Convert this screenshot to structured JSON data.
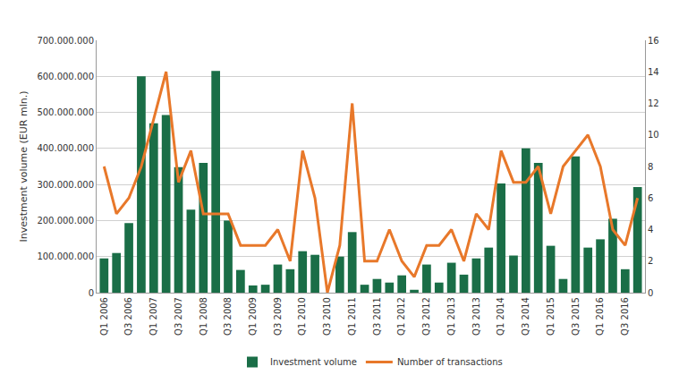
{
  "chart_data": {
    "type": "bar",
    "y_label": "Investment volume (EUR mln.)",
    "categories": [
      "Q1 2006",
      null,
      "Q3 2006",
      null,
      "Q1 2007",
      null,
      "Q3 2007",
      null,
      "Q1 2008",
      null,
      "Q3 2008",
      null,
      "Q1 2009",
      null,
      "Q3 2009",
      null,
      "Q1 2010",
      null,
      "Q3 2010",
      null,
      "Q1 2011",
      null,
      "Q3 2011",
      null,
      "Q1 2012",
      null,
      "Q3 2012",
      null,
      "Q1 2013",
      null,
      "Q3 2013",
      null,
      "Q1 2014",
      null,
      "Q3 2014",
      null,
      "Q1 2015",
      null,
      "Q3 2015",
      null,
      "Q1 2016",
      null,
      "Q3 2016",
      null
    ],
    "series": [
      {
        "name": "Investment volume",
        "type": "bar",
        "color": "#1a6e47",
        "values": [
          95000000,
          110000000,
          193000000,
          600000000,
          470000000,
          493000000,
          348000000,
          230000000,
          360000000,
          615000000,
          200000000,
          63000000,
          20000000,
          22000000,
          78000000,
          65000000,
          115000000,
          105000000,
          0,
          100000000,
          168000000,
          22000000,
          38000000,
          28000000,
          48000000,
          8000000,
          78000000,
          28000000,
          83000000,
          50000000,
          95000000,
          125000000,
          303000000,
          103000000,
          400000000,
          360000000,
          130000000,
          38000000,
          378000000,
          125000000,
          148000000,
          205000000,
          65000000,
          293000000
        ]
      },
      {
        "name": "Number of transactions",
        "type": "line",
        "color": "#e8782a",
        "axis": "y2",
        "values": [
          8,
          5,
          6,
          8,
          11,
          14,
          7,
          9,
          5,
          5,
          5,
          3,
          3,
          3,
          4,
          2,
          9,
          6,
          0,
          3,
          12,
          2,
          2,
          4,
          2,
          1,
          3,
          3,
          4,
          2,
          5,
          4,
          9,
          7,
          7,
          8,
          5,
          8,
          9,
          10,
          8,
          4,
          3,
          6
        ]
      }
    ],
    "ylim": [
      0,
      700000000
    ],
    "yticks": [
      {
        "value": 0,
        "label": "0"
      },
      {
        "value": 100000000,
        "label": "100.000.000"
      },
      {
        "value": 200000000,
        "label": "200.000.000"
      },
      {
        "value": 300000000,
        "label": "300.000.000"
      },
      {
        "value": 400000000,
        "label": "400.000.000"
      },
      {
        "value": 500000000,
        "label": "500.000.000"
      },
      {
        "value": 600000000,
        "label": "600.000.000"
      },
      {
        "value": 700000000,
        "label": "700.000.000"
      }
    ],
    "y2lim": [
      0,
      16
    ],
    "y2ticks": [
      0,
      2,
      4,
      6,
      8,
      10,
      12,
      14,
      16
    ],
    "grid": true,
    "legend": "bottom"
  }
}
